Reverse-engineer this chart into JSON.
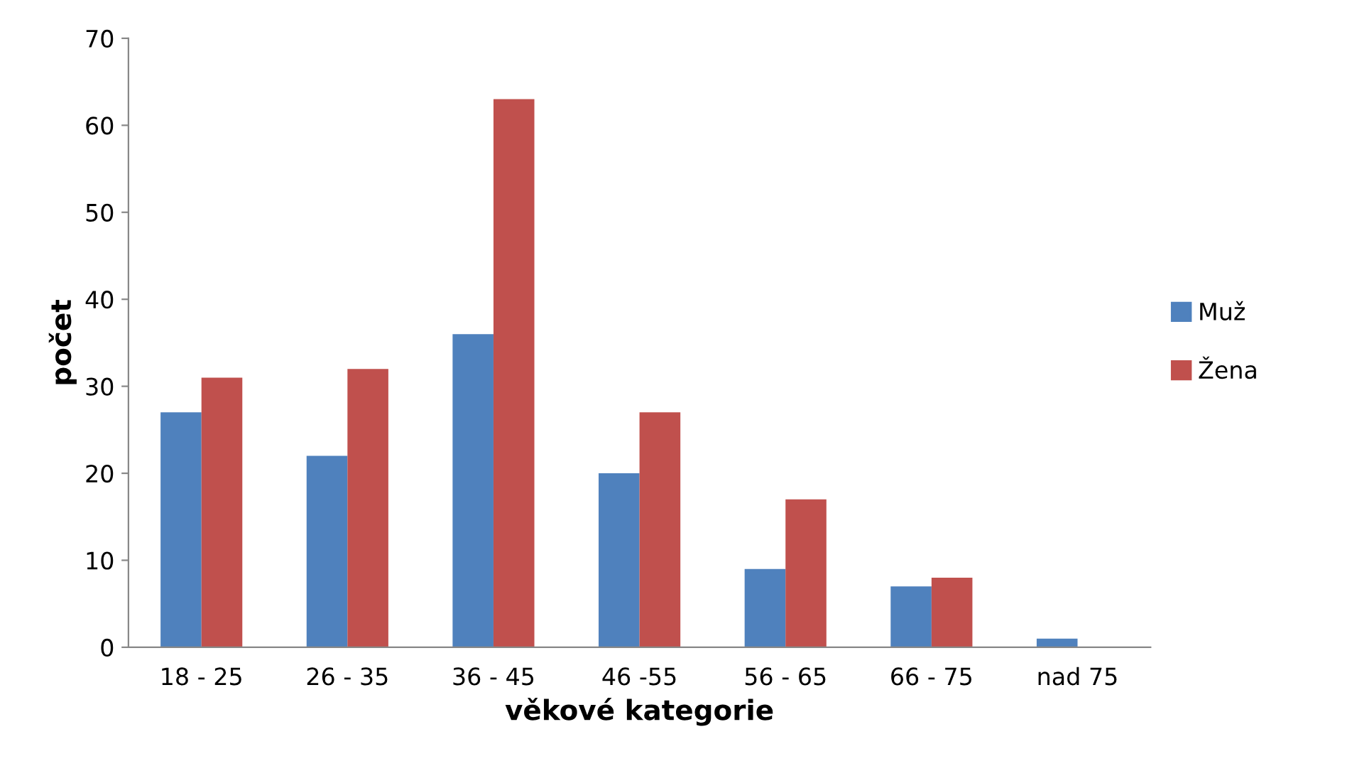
{
  "chart_data": {
    "type": "bar",
    "xlabel": "věkové kategorie",
    "ylabel": "počet",
    "categories": [
      "18 - 25",
      "26 - 35",
      "36 - 45",
      "46 -55",
      "56 - 65",
      "66 - 75",
      "nad 75"
    ],
    "series": [
      {
        "name": "Muž",
        "color": "#4f81bd",
        "values": [
          27,
          22,
          36,
          20,
          9,
          7,
          1
        ]
      },
      {
        "name": "Žena",
        "color": "#c0504d",
        "values": [
          31,
          32,
          63,
          27,
          17,
          8,
          0
        ]
      }
    ],
    "ylim": [
      0,
      70
    ],
    "yticks": [
      0,
      10,
      20,
      30,
      40,
      50,
      60,
      70
    ],
    "grid": false,
    "legend": "right"
  }
}
